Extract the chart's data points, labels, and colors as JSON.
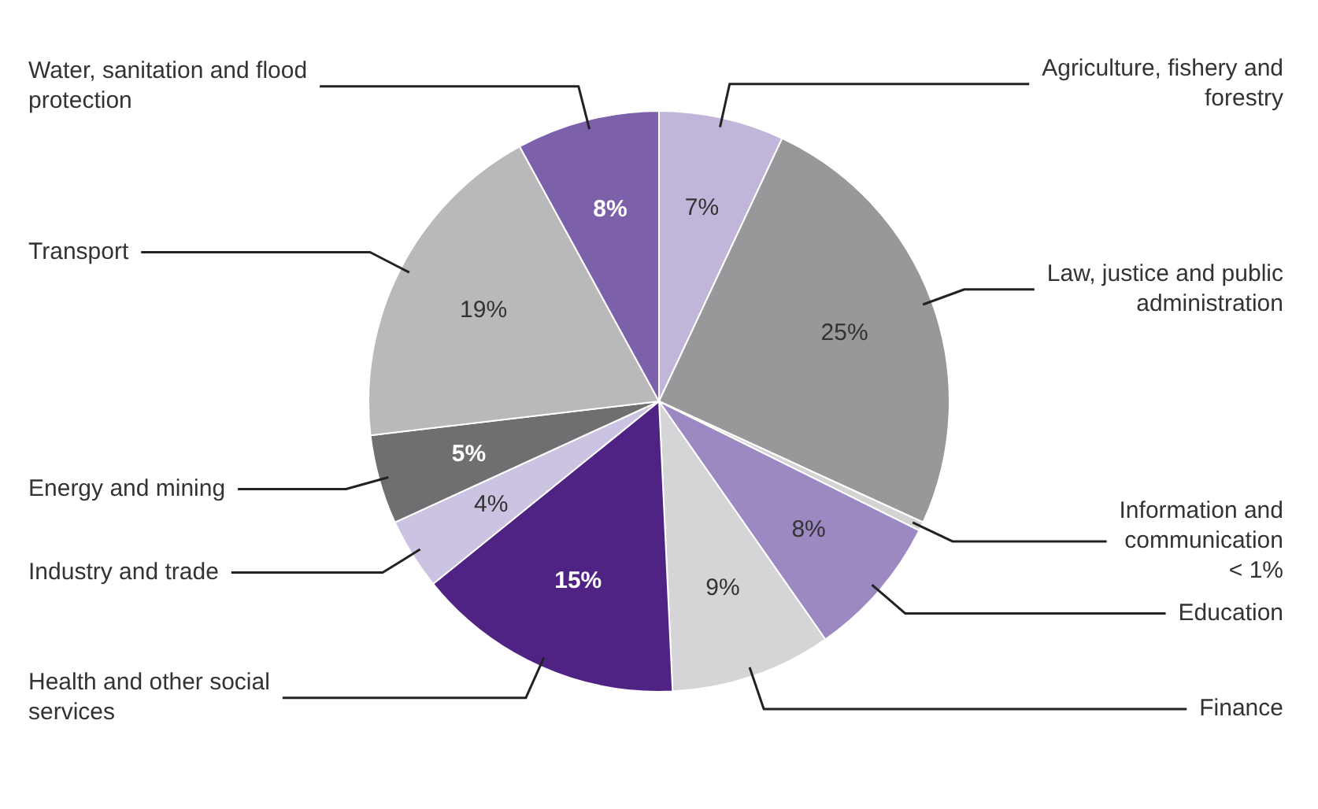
{
  "chart_data": {
    "type": "pie",
    "categories": [
      "Agriculture, fishery and forestry",
      "Law, justice and public administration",
      "Information and communication",
      "Education",
      "Finance",
      "Health and other social services",
      "Industry and trade",
      "Energy and mining",
      "Transport",
      "Water, sanitation and flood protection"
    ],
    "values": [
      7,
      25,
      0.5,
      8,
      9,
      15,
      4,
      5,
      19,
      8
    ],
    "value_labels": [
      "7%",
      "25%",
      "< 1%",
      "8%",
      "9%",
      "15%",
      "4%",
      "5%",
      "19%",
      "8%"
    ],
    "colors": [
      "#c1b6d9",
      "#98989a",
      "#d3d3d5",
      "#9c89c2",
      "#d5d5d7",
      "#4f2383",
      "#cbc3e1",
      "#6f6f71",
      "#b9b9bb",
      "#7c60a9"
    ],
    "legend": false
  }
}
